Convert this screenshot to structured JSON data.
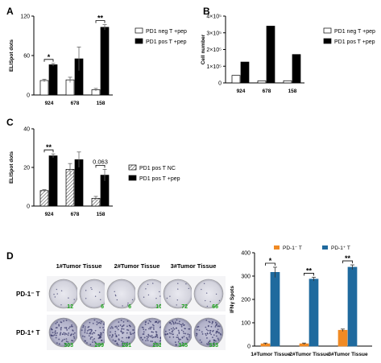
{
  "panels": {
    "A": "A",
    "B": "B",
    "C": "C",
    "D": "D"
  },
  "colors": {
    "neg_fill": "#ffffff",
    "pos_fill": "#000000",
    "nc_hatch": "#555555",
    "orange": "#f08a24",
    "blue": "#1f6a9e",
    "err_gray": "#666666"
  },
  "chart_data": [
    {
      "id": "A",
      "type": "bar",
      "categories": [
        "924",
        "678",
        "158"
      ],
      "ylabel": "ELISpot dots",
      "yticks": [
        "0",
        "60",
        "120"
      ],
      "ylim": [
        0,
        120
      ],
      "series": [
        {
          "name": "PD1 neg T +pep",
          "values": [
            22,
            23,
            8
          ],
          "errors": [
            2,
            4,
            2
          ],
          "style": "open"
        },
        {
          "name": "PD1 pos T +pep",
          "values": [
            46,
            55,
            103
          ],
          "errors": [
            2,
            18,
            4
          ],
          "style": "solid"
        }
      ],
      "significance": [
        "*",
        "",
        "**"
      ],
      "legend_position": "right"
    },
    {
      "id": "B",
      "type": "bar",
      "categories": [
        "924",
        "678",
        "158"
      ],
      "ylabel": "Cell number",
      "yticks": [
        "0",
        "1×10⁵",
        "2×10⁵",
        "3×10⁵",
        "4×10⁵"
      ],
      "ylim": [
        0,
        400000
      ],
      "series": [
        {
          "name": "PD1 neg T +pep",
          "values": [
            45000,
            12000,
            13000
          ],
          "style": "open"
        },
        {
          "name": "PD1 pos T +pep",
          "values": [
            125000,
            340000,
            170000
          ],
          "style": "solid"
        }
      ],
      "legend_position": "right"
    },
    {
      "id": "C",
      "type": "bar",
      "categories": [
        "924",
        "678",
        "158"
      ],
      "ylabel": "ELISpot dots",
      "yticks": [
        "0",
        "20",
        "40"
      ],
      "ylim": [
        0,
        40
      ],
      "series": [
        {
          "name": "PD1 pos T NC",
          "values": [
            8,
            19,
            4
          ],
          "errors": [
            0.5,
            3,
            1
          ],
          "style": "hatched"
        },
        {
          "name": "PD1 pos T +pep",
          "values": [
            26,
            24,
            16
          ],
          "errors": [
            1,
            4,
            3
          ],
          "style": "solid"
        }
      ],
      "significance": [
        "**",
        "",
        "0.063"
      ],
      "legend_position": "right"
    },
    {
      "id": "D",
      "type": "bar",
      "categories": [
        "1#Tumor Tissue",
        "2#Tumor Tissue",
        "3#Tumor Tissue"
      ],
      "ylabel": "IFNγ Spots",
      "yticks": [
        "0",
        "100",
        "200",
        "300",
        "400"
      ],
      "ylim": [
        0,
        400
      ],
      "series": [
        {
          "name": "PD-1⁻ T",
          "values": [
            10,
            10,
            68
          ],
          "errors": [
            3,
            3,
            5
          ],
          "color": "#f08a24"
        },
        {
          "name": "PD-1⁺ T",
          "values": [
            316,
            287,
            338
          ],
          "errors": [
            22,
            8,
            10
          ],
          "color": "#1f6a9e"
        }
      ],
      "significance": [
        "*",
        "**",
        "**"
      ],
      "legend_position": "top"
    }
  ],
  "elispot": {
    "column_titles": [
      "1#Tumor Tissue",
      "2#Tumor Tissue",
      "3#Tumor Tissue"
    ],
    "row_labels": [
      "PD-1⁻ T",
      "PD-1⁺ T"
    ],
    "well_counts": [
      [
        "12",
        "6",
        "6",
        "10",
        "72",
        "66"
      ],
      [
        "303",
        "299",
        "281",
        "252",
        "345",
        "333"
      ]
    ]
  }
}
